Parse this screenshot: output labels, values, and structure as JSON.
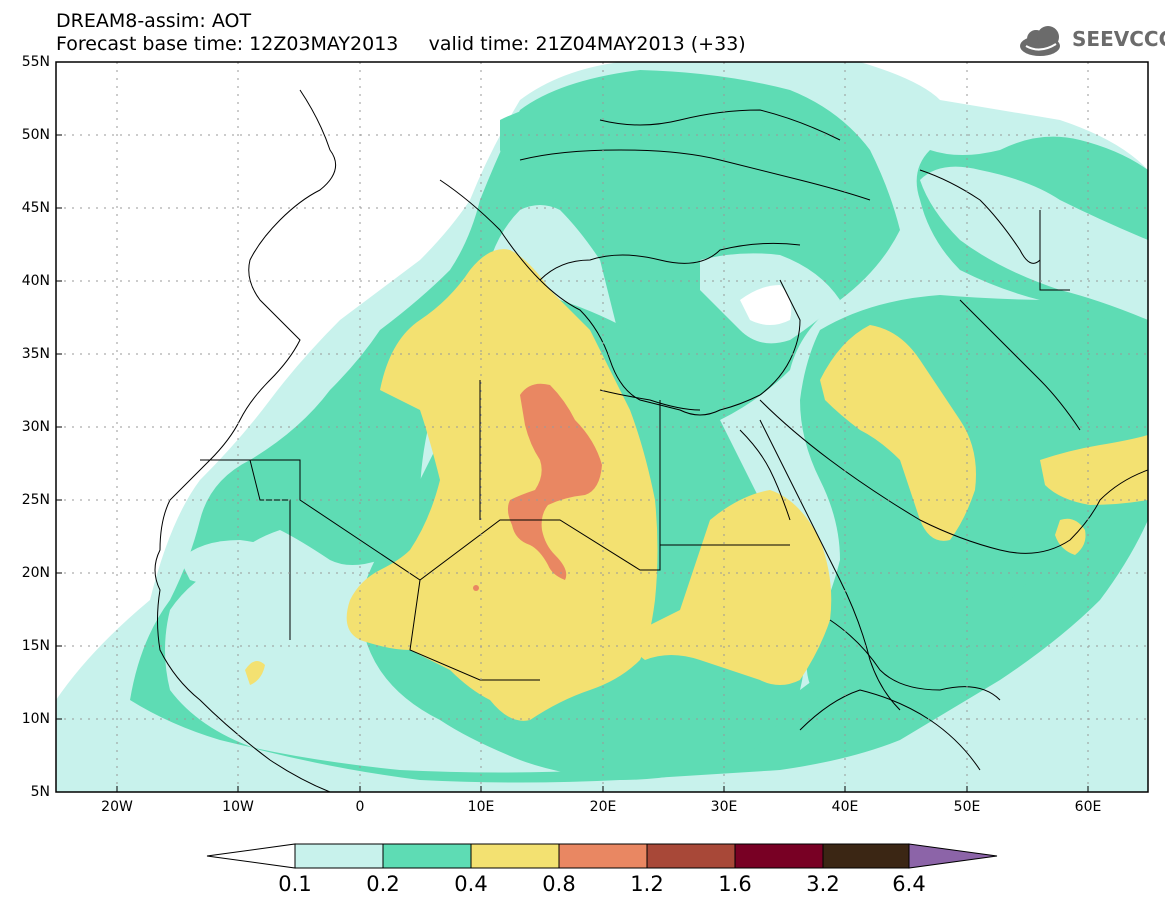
{
  "title": {
    "line1": "DREAM8-assim: AOT",
    "line2": "Forecast base time: 12Z03MAY2013     valid time: 21Z04MAY2013 (+33)"
  },
  "logo": {
    "text": "SEEVCCC",
    "icon": "cloud-icon"
  },
  "map": {
    "projection": "lat-lon",
    "lon_range": [
      -25,
      65
    ],
    "lat_range": [
      5,
      55
    ],
    "lat_labels": [
      "55N",
      "50N",
      "45N",
      "40N",
      "35N",
      "30N",
      "25N",
      "20N",
      "15N",
      "10N",
      "5N"
    ],
    "lon_labels": [
      "20W",
      "10W",
      "0",
      "10E",
      "20E",
      "30E",
      "40E",
      "50E",
      "60E"
    ],
    "grid": "dotted"
  },
  "colorbar": {
    "labels": [
      "0.1",
      "0.2",
      "0.4",
      "0.8",
      "1.2",
      "1.6",
      "3.2",
      "6.4"
    ],
    "colors": [
      "#c8f2ec",
      "#5edcb4",
      "#f3e171",
      "#e98762",
      "#a84838",
      "#780024",
      "#3b2614",
      "#8c64a8"
    ],
    "under_color": "#ffffff"
  }
}
